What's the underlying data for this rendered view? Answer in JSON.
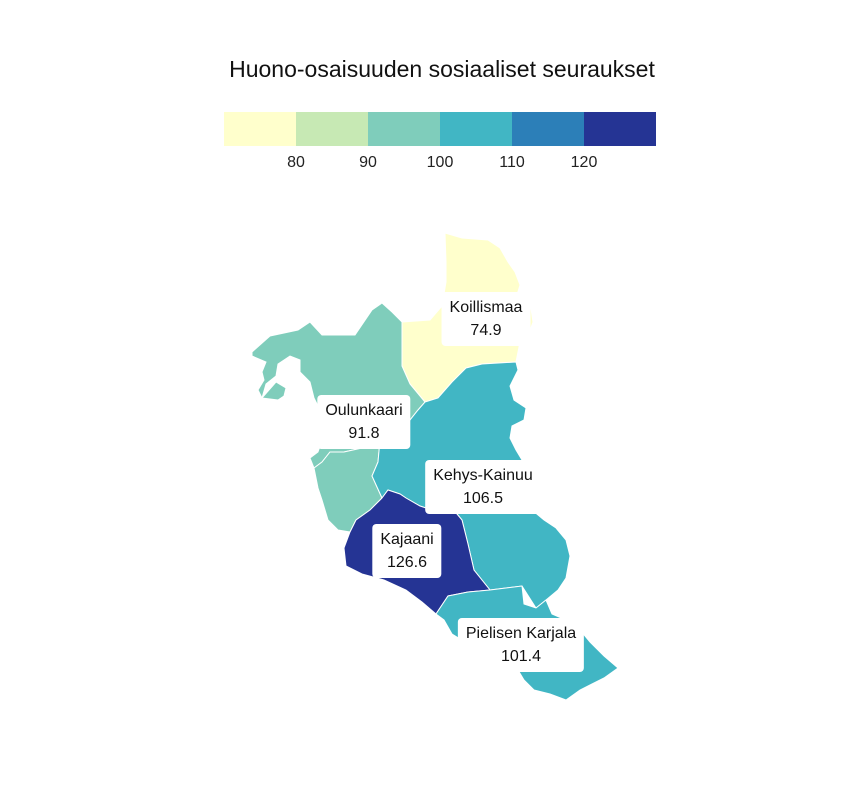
{
  "title": "Huono-osaisuuden sosiaaliset seuraukset",
  "legend": {
    "colors": [
      "#ffffcc",
      "#c7e9b4",
      "#7fcdbb",
      "#41b6c4",
      "#2c7fb8",
      "#253494"
    ],
    "ticks": [
      "80",
      "90",
      "100",
      "110",
      "120"
    ]
  },
  "regions": [
    {
      "name": "Koillismaa",
      "value": "74.9",
      "color": "#ffffcc"
    },
    {
      "name": "Oulunkaari",
      "value": "91.8",
      "color": "#7fcdbb"
    },
    {
      "name": "Kehys-Kainuu",
      "value": "106.5",
      "color": "#41b6c4"
    },
    {
      "name": "Kajaani",
      "value": "126.6",
      "color": "#253494"
    },
    {
      "name": "Pielisen Karjala",
      "value": "101.4",
      "color": "#41b6c4"
    }
  ]
}
